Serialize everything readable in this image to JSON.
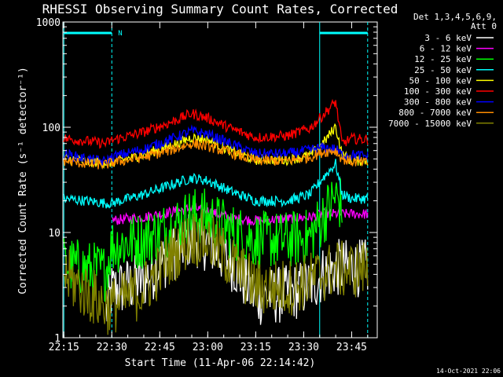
{
  "chart_data": {
    "type": "line",
    "title": "RHESSI Observing Summary Count Rates, Corrected",
    "xlabel": "Start Time (11-Apr-06 22:14:42)",
    "ylabel": "Corrected Count Rate (s⁻¹ detector⁻¹)",
    "y_scale": "log",
    "ylim": [
      1,
      1000
    ],
    "xlim": [
      "22:14:42",
      "23:53:00"
    ],
    "x_ticks": [
      "22:15",
      "22:30",
      "22:45",
      "23:00",
      "23:15",
      "23:30",
      "23:45"
    ],
    "y_ticks": [
      "1",
      "10",
      "100",
      "1000"
    ],
    "grid": false,
    "legend_position": "top-right",
    "legend_header": [
      "Det 1,3,4,5,6,9,",
      "Att 0"
    ],
    "footer": "14-Oct-2021 22:06",
    "annotations": [
      {
        "text": "N",
        "x": "22:30",
        "color": "#00ffff"
      }
    ],
    "night_bars": [
      {
        "start": "22:15",
        "end": "22:30"
      },
      {
        "start": "23:35",
        "end": "23:50"
      }
    ],
    "series_x": [
      "22:15",
      "22:22",
      "22:28",
      "22:30",
      "22:40",
      "22:48",
      "22:55",
      "23:00",
      "23:08",
      "23:15",
      "23:25",
      "23:32",
      "23:36",
      "23:40",
      "23:42",
      "23:45",
      "23:50"
    ],
    "series": [
      {
        "name": "3 - 6 keV",
        "color": "#ffffff",
        "values": [
          null,
          null,
          1.6,
          2.8,
          3.5,
          6,
          9,
          8,
          5,
          2.4,
          2.6,
          3.1,
          4,
          4.6,
          4.6,
          4.6,
          4.6
        ]
      },
      {
        "name": "6 - 12 keV",
        "color": "#ff00ff",
        "values": [
          null,
          null,
          null,
          13,
          14,
          15.5,
          17,
          16,
          13.5,
          13,
          13.5,
          14,
          15,
          15,
          15,
          15,
          15
        ]
      },
      {
        "name": "12 - 25 keV",
        "color": "#00ff00",
        "values": [
          5,
          4.5,
          4.2,
          7.5,
          8.5,
          11,
          14.5,
          14,
          10,
          8.5,
          8.5,
          9,
          14,
          22,
          18,
          null,
          null
        ]
      },
      {
        "name": "25 - 50 keV",
        "color": "#00ffff",
        "values": [
          21,
          20,
          19,
          19,
          23,
          28,
          33,
          31,
          24,
          20,
          20,
          23,
          33,
          45,
          23,
          21,
          21
        ]
      },
      {
        "name": "50 - 100 keV",
        "color": "#ffff00",
        "values": [
          51,
          47,
          46,
          46,
          55,
          66,
          80,
          76,
          58,
          49,
          49,
          54,
          70,
          102,
          55,
          48,
          48
        ]
      },
      {
        "name": "100 - 300 keV",
        "color": "#ff0000",
        "values": [
          78,
          74,
          70,
          75,
          90,
          110,
          135,
          122,
          95,
          80,
          83,
          98,
          130,
          175,
          70,
          78,
          76
        ]
      },
      {
        "name": "300 - 800 keV",
        "color": "#0000ff",
        "values": [
          56,
          50,
          47,
          52,
          62,
          76,
          92,
          86,
          68,
          56,
          56,
          61,
          64,
          62,
          55,
          55,
          53
        ]
      },
      {
        "name": "800 - 7000 keV",
        "color": "#ff8c00",
        "values": [
          48,
          45,
          44,
          46,
          52,
          60,
          70,
          66,
          56,
          48,
          48,
          52,
          58,
          60,
          50,
          47,
          46
        ]
      },
      {
        "name": "7000 - 15000 keV",
        "color": "#808000",
        "values": [
          4,
          2.7,
          2,
          2,
          2.9,
          5.8,
          9,
          8.5,
          5,
          3,
          3,
          3.5,
          4,
          4.6,
          4.4,
          4.4,
          4.6
        ]
      }
    ]
  }
}
